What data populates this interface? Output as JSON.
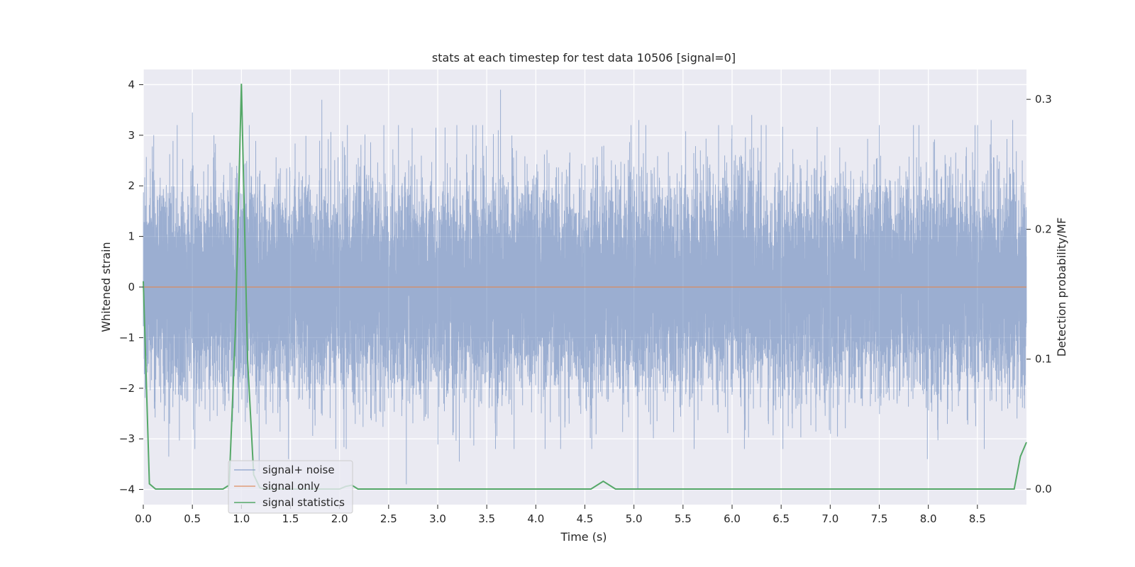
{
  "chart_data": {
    "type": "line",
    "title": "stats at each timestep for test data 10506 [signal=0]",
    "xlabel": "Time (s)",
    "ylabel": "Whitened strain",
    "y2label": "Detection probability/MF",
    "xlim": [
      0.0,
      9.0
    ],
    "ylim": [
      -4.3,
      4.3
    ],
    "y2lim": [
      -0.012,
      0.323
    ],
    "xticks": [
      0.0,
      0.5,
      1.0,
      1.5,
      2.0,
      2.5,
      3.0,
      3.5,
      4.0,
      4.5,
      5.0,
      5.5,
      6.0,
      6.5,
      7.0,
      7.5,
      8.0,
      8.5
    ],
    "xtick_labels": [
      "0.0",
      "0.5",
      "1.0",
      "1.5",
      "2.0",
      "2.5",
      "3.0",
      "3.5",
      "4.0",
      "4.5",
      "5.0",
      "5.5",
      "6.0",
      "6.5",
      "7.0",
      "7.5",
      "8.0",
      "8.5"
    ],
    "yticks": [
      4,
      3,
      2,
      1,
      0,
      -1,
      -2,
      -3,
      -4
    ],
    "ytick_labels": [
      "4",
      "3",
      "2",
      "1",
      "0",
      "−1",
      "−2",
      "−3",
      "−4"
    ],
    "y2ticks": [
      0.3,
      0.2,
      0.1,
      0.0
    ],
    "y2tick_labels": [
      "0.3",
      "0.2",
      "0.1",
      "0.0"
    ],
    "grid": true,
    "legend_position": "lower-left",
    "noise_seed": 10506,
    "series": [
      {
        "name": "signal+ noise",
        "color": "#4c72b0",
        "axis": "left",
        "kind": "dense-noise",
        "sample_rate_hz": 2048,
        "x_range": [
          0.0,
          9.0
        ],
        "std": 1.0,
        "peaks": [
          {
            "x": 0.5,
            "y": 3.45
          },
          {
            "x": 0.72,
            "y": 3.0
          },
          {
            "x": 1.08,
            "y": 3.2
          },
          {
            "x": 1.82,
            "y": 3.7
          },
          {
            "x": 2.6,
            "y": 3.2
          },
          {
            "x": 3.64,
            "y": 3.9
          },
          {
            "x": 5.05,
            "y": 3.3
          },
          {
            "x": 6.2,
            "y": 3.4
          },
          {
            "x": 8.64,
            "y": 3.3
          },
          {
            "x": 8.86,
            "y": 3.3
          },
          {
            "x": 5.04,
            "y": -4.0
          },
          {
            "x": 2.68,
            "y": -3.9
          },
          {
            "x": 1.18,
            "y": -3.65
          },
          {
            "x": 0.26,
            "y": -3.35
          },
          {
            "x": 3.22,
            "y": -3.45
          },
          {
            "x": 7.99,
            "y": -3.4
          },
          {
            "x": 4.57,
            "y": -3.2
          },
          {
            "x": 8.57,
            "y": -3.2
          },
          {
            "x": 1.48,
            "y": -3.4
          }
        ]
      },
      {
        "name": "signal only",
        "color": "#dd8452",
        "axis": "left",
        "x": [
          0.0,
          9.0
        ],
        "y": [
          0.0,
          0.0
        ]
      },
      {
        "name": "signal statistics",
        "color": "#55a868",
        "axis": "right",
        "x": [
          0.0,
          0.0625,
          0.125,
          0.1875,
          0.25,
          0.8125,
          0.875,
          0.9375,
          1.0,
          1.0625,
          1.125,
          1.1875,
          1.25,
          2.0,
          2.0625,
          2.125,
          2.1875,
          2.25,
          4.5625,
          4.6875,
          4.8125,
          4.875,
          8.875,
          8.9375,
          9.0
        ],
        "y": [
          0.16,
          0.004,
          0.0,
          0.0,
          0.0,
          0.0,
          0.003,
          0.12,
          0.312,
          0.1,
          0.011,
          0.001,
          0.0,
          0.0,
          0.002,
          0.003,
          0.0,
          0.0,
          0.0,
          0.006,
          0.0,
          0.0,
          0.0,
          0.025,
          0.036
        ]
      }
    ]
  }
}
